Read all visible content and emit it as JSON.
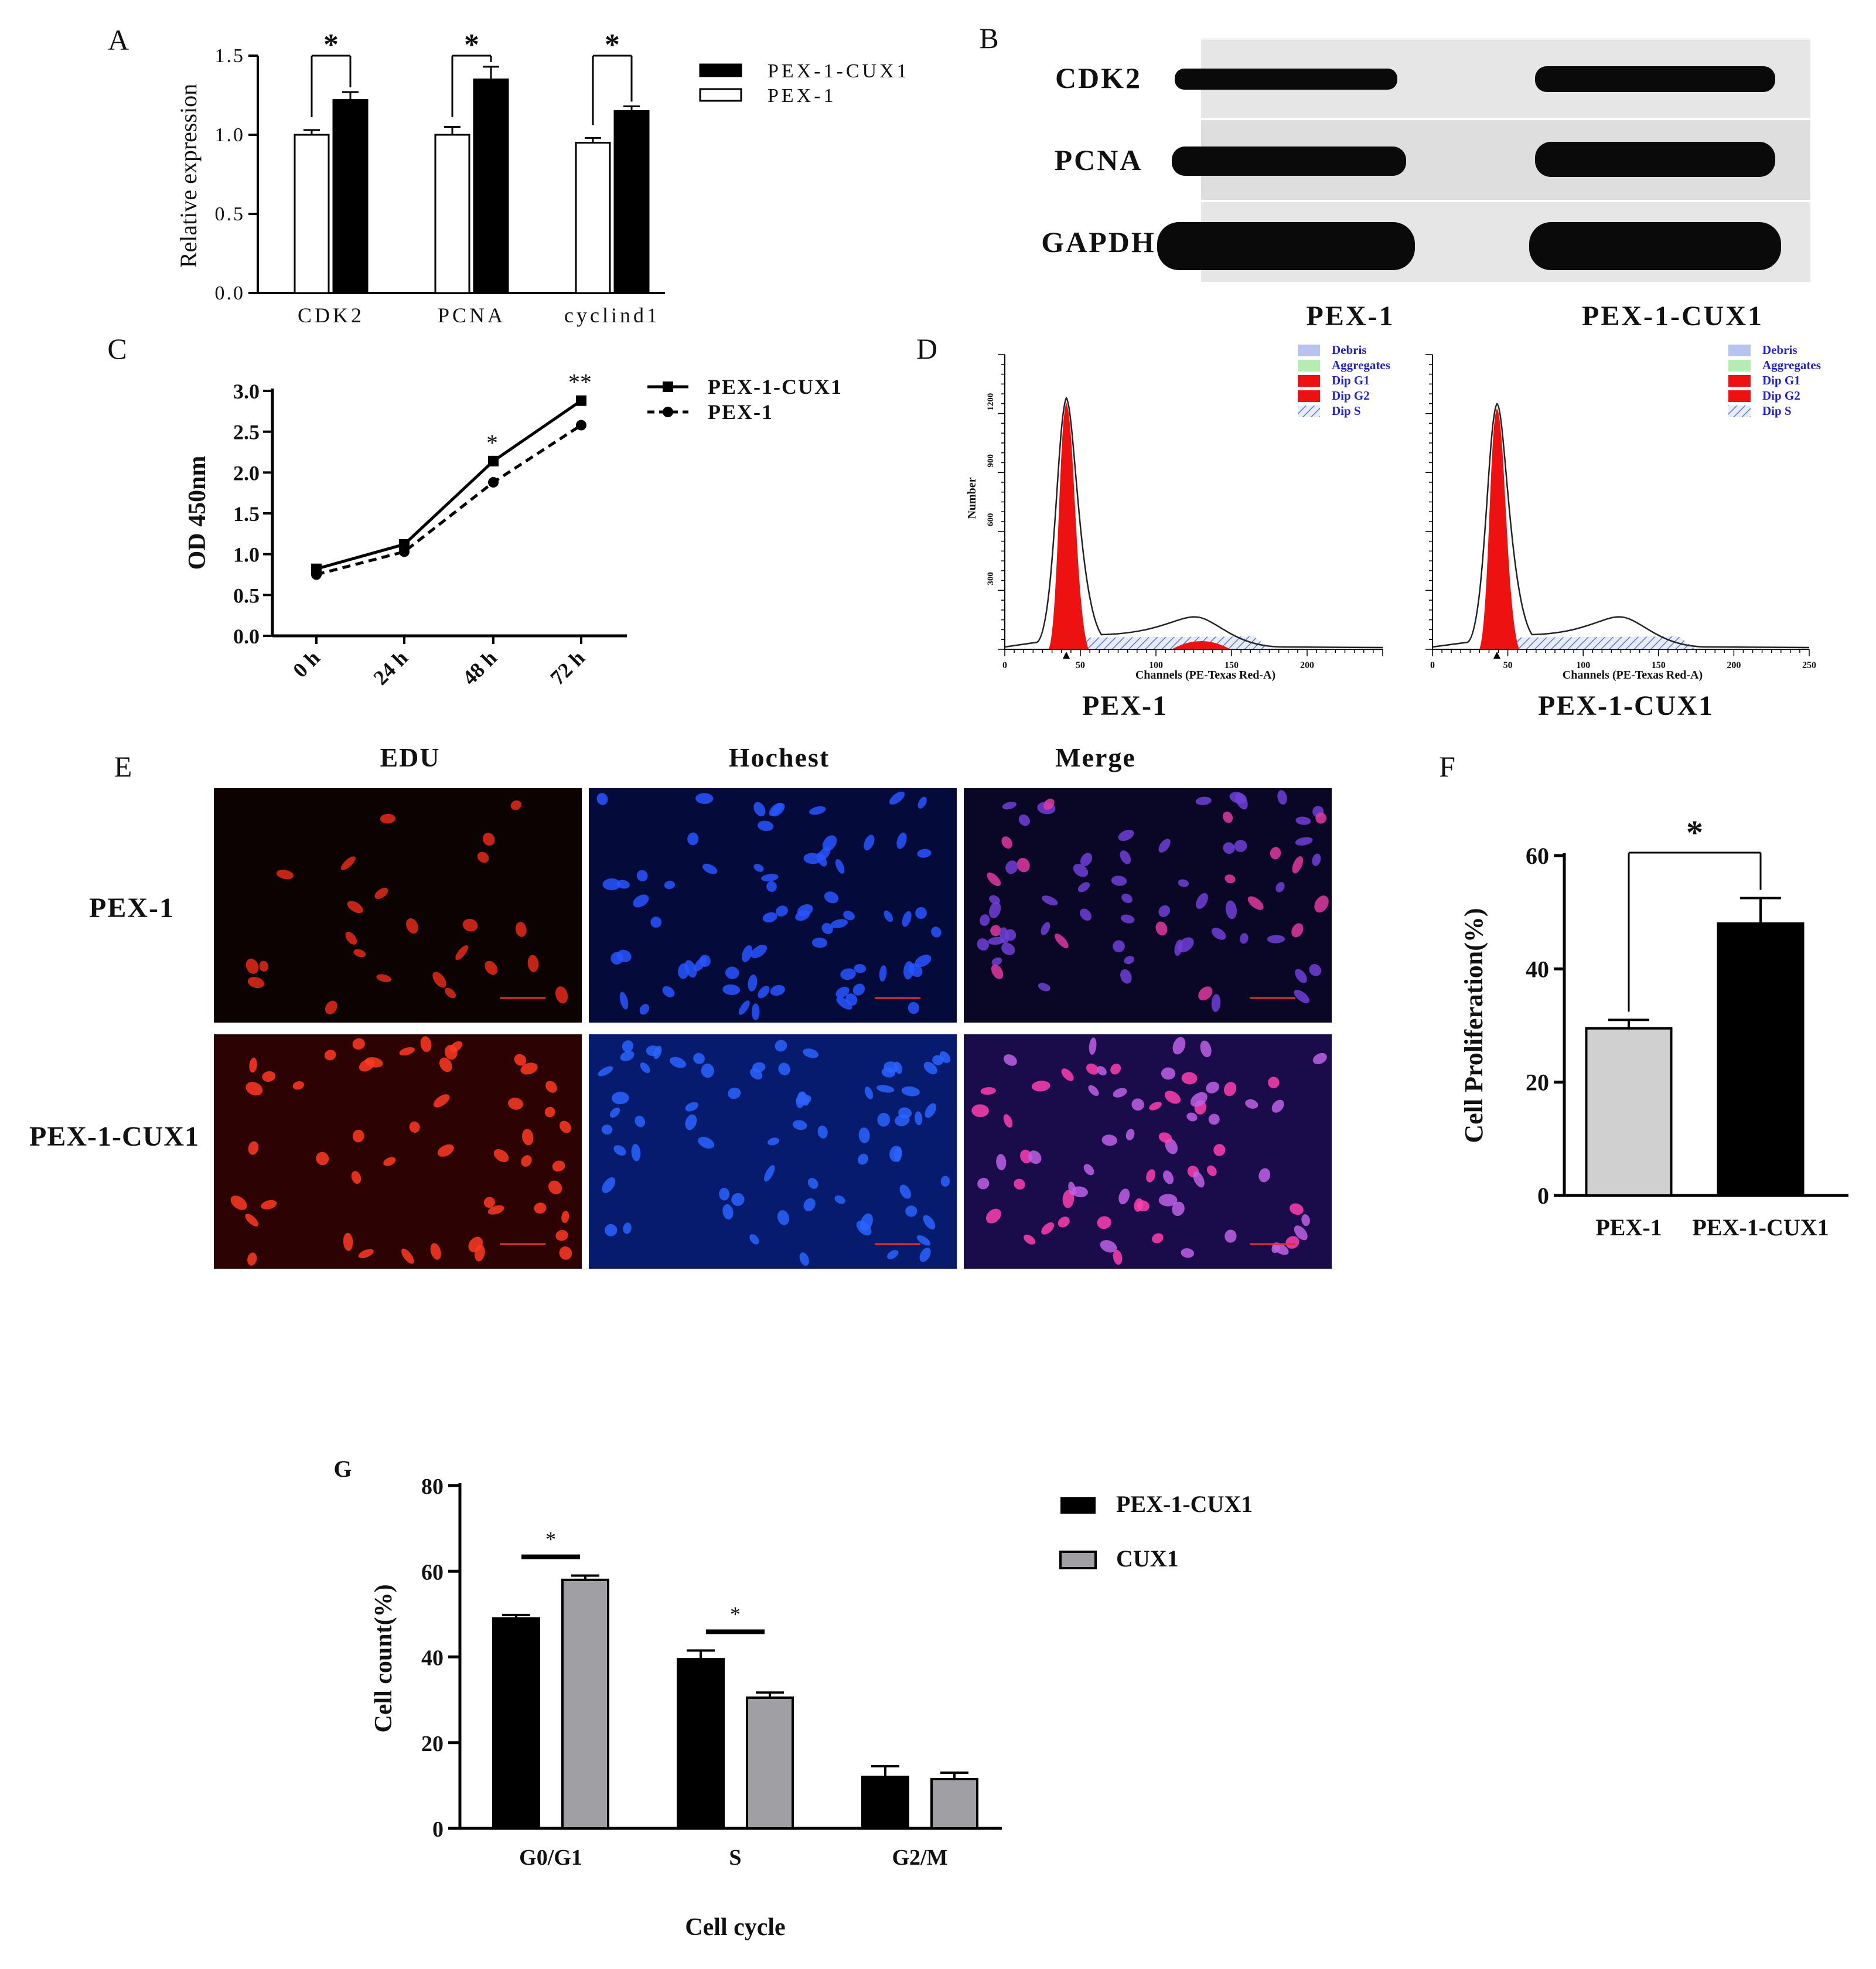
{
  "colors": {
    "pex1_cux1": "#000000",
    "pex1": "#ffffff",
    "pex1_f": "#d0d0d0",
    "cux1_g": "#a0a0a4",
    "flow_red": "#ee1111",
    "flow_debris": "#b8c4f0",
    "flow_aggregates": "#b4ecb4",
    "flow_dip_s": "#5a78c8",
    "legend_blue_text": "#2222cc"
  },
  "chart_data": [
    {
      "panel": "A",
      "type": "bar",
      "ylabel": "Relative expression",
      "ylim": [
        0,
        1.5
      ],
      "yticks": [
        "0.0",
        "0.5",
        "1.0",
        "1.5"
      ],
      "categories": [
        "CDK2",
        "PCNA",
        "cyclind1"
      ],
      "series": [
        {
          "name": "PEX-1",
          "values": [
            1.0,
            1.0,
            0.95
          ],
          "errors": [
            0.03,
            0.05,
            0.03
          ]
        },
        {
          "name": "PEX-1-CUX1",
          "values": [
            1.22,
            1.35,
            1.15
          ],
          "errors": [
            0.05,
            0.08,
            0.03
          ]
        }
      ],
      "significance": [
        "*",
        "*",
        "*"
      ],
      "legend": [
        "PEX-1-CUX1",
        "PEX-1"
      ]
    },
    {
      "panel": "C",
      "type": "line",
      "ylabel": "OD 450nm",
      "ylim": [
        0,
        3.0
      ],
      "yticks": [
        "0.0",
        "0.5",
        "1.0",
        "1.5",
        "2.0",
        "2.5",
        "3.0"
      ],
      "categories": [
        "0 h",
        "24 h",
        "48 h",
        "72 h"
      ],
      "series": [
        {
          "name": "PEX-1-CUX1",
          "values": [
            0.82,
            1.12,
            2.14,
            2.88
          ]
        },
        {
          "name": "PEX-1",
          "values": [
            0.75,
            1.03,
            1.88,
            2.58
          ]
        }
      ],
      "annotations": [
        "",
        "",
        "*",
        "**"
      ],
      "legend": [
        "PEX-1-CUX1",
        "PEX-1"
      ]
    },
    {
      "panel": "F",
      "type": "bar",
      "ylabel": "Cell Proliferation(%)",
      "ylim": [
        0,
        60
      ],
      "yticks": [
        "0",
        "20",
        "40",
        "60"
      ],
      "categories": [
        "PEX-1",
        "PEX-1-CUX1"
      ],
      "values": [
        29.5,
        48
      ],
      "errors": [
        1.5,
        4.5
      ],
      "significance": "*"
    },
    {
      "panel": "G",
      "type": "bar",
      "xlabel": "Cell cycle",
      "ylabel": "Cell count(%)",
      "ylim": [
        0,
        80
      ],
      "yticks": [
        "0",
        "20",
        "40",
        "60",
        "80"
      ],
      "categories": [
        "G0/G1",
        "S",
        "G2/M"
      ],
      "series": [
        {
          "name": "PEX-1-CUX1",
          "values": [
            49,
            39.5,
            12
          ],
          "errors": [
            0.8,
            2,
            2.5
          ]
        },
        {
          "name": "CUX1",
          "values": [
            58,
            30.5,
            11.5
          ],
          "errors": [
            1,
            1.2,
            1.5
          ]
        }
      ],
      "significance": [
        "*",
        "*",
        ""
      ],
      "legend": [
        "PEX-1-CUX1",
        "CUX1"
      ]
    }
  ],
  "panel_labels": {
    "A": "A",
    "B": "B",
    "C": "C",
    "D": "D",
    "E": "E",
    "F": "F",
    "G": "G"
  },
  "western": {
    "rows": [
      "CDK2",
      "PCNA",
      "GAPDH"
    ],
    "columns": [
      "PEX-1",
      "PEX-1-CUX1"
    ]
  },
  "flow": {
    "xlabel": "Channels (PE-Texas Red-A)",
    "ylabel": "Number",
    "legend": [
      "Debris",
      "Aggregates",
      "Dip G1",
      "Dip G2",
      "Dip S"
    ],
    "plots": [
      {
        "label": "PEX-1",
        "xticks": [
          "0",
          "50",
          "100",
          "150",
          "200"
        ],
        "xmax": 250,
        "yticks": [
          "300",
          "600",
          "900",
          "1200"
        ]
      },
      {
        "label": "PEX-1-CUX1",
        "xticks": [
          "0",
          "50",
          "100",
          "150",
          "200",
          "250"
        ],
        "xmax": 250,
        "yticks": []
      }
    ]
  },
  "edu": {
    "columns": [
      "EDU",
      "Hochest",
      "Merge"
    ],
    "rows": [
      "PEX-1",
      "PEX-1-CUX1"
    ]
  }
}
